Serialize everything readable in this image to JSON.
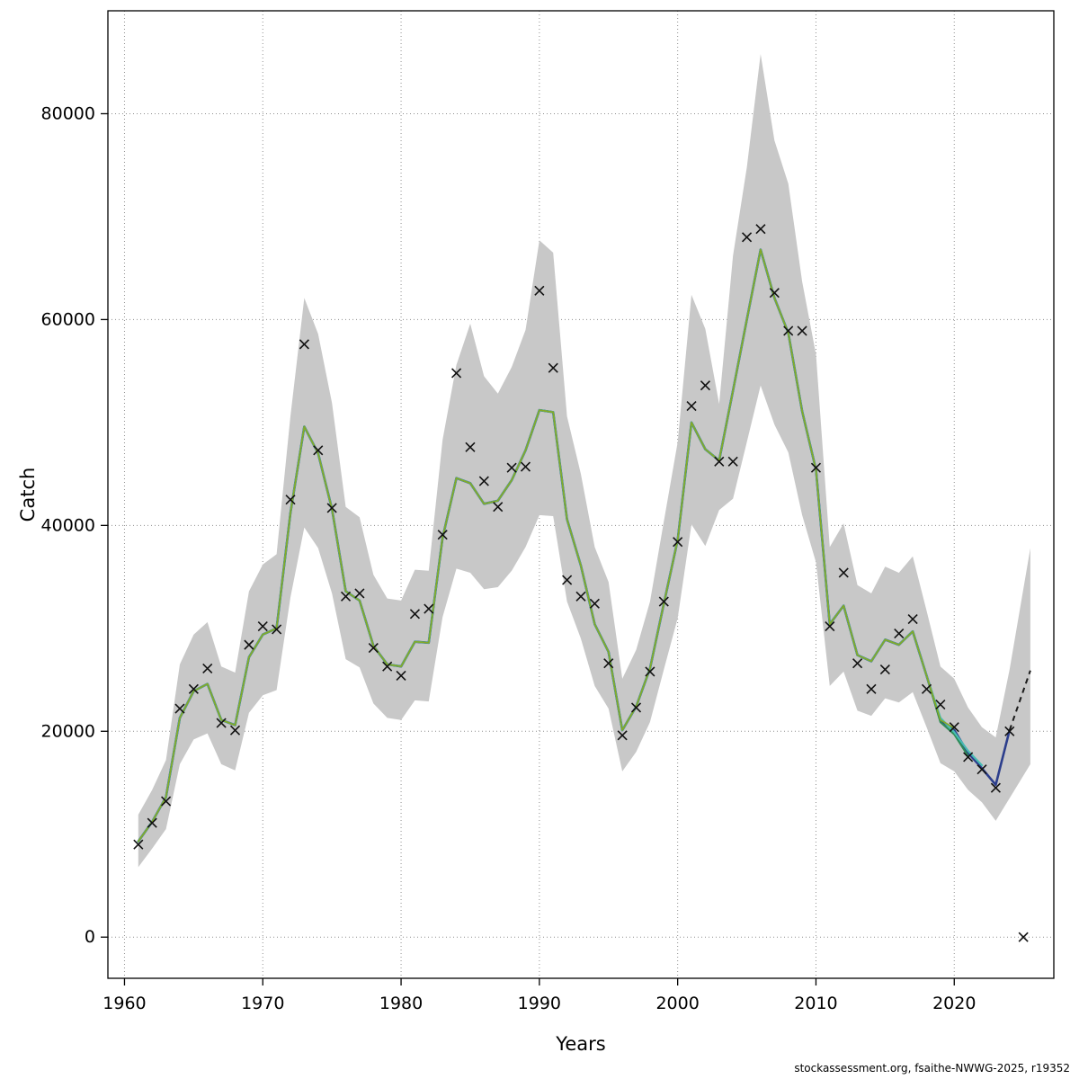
{
  "footer": "stockassessment.org, fsaithe-NWWG-2025, r19352",
  "chart_data": {
    "type": "line",
    "title": "",
    "xlabel": "Years",
    "ylabel": "Catch",
    "xlim": [
      1958.8,
      2027.2
    ],
    "ylim": [
      -4000,
      90000
    ],
    "xticks": [
      1960,
      1970,
      1980,
      1990,
      2000,
      2010,
      2020
    ],
    "yticks": [
      0,
      20000,
      40000,
      60000,
      80000
    ],
    "grid": "dotted",
    "grid_color": "#8f8f8f",
    "band": {
      "color": "#c8c8c8",
      "years": [
        1961,
        1962,
        1963,
        1964,
        1965,
        1966,
        1967,
        1968,
        1969,
        1970,
        1971,
        1972,
        1973,
        1974,
        1975,
        1976,
        1977,
        1978,
        1979,
        1980,
        1981,
        1982,
        1983,
        1984,
        1985,
        1986,
        1987,
        1988,
        1989,
        1990,
        1991,
        1992,
        1993,
        1994,
        1995,
        1996,
        1997,
        1998,
        1999,
        2000,
        2001,
        2002,
        2003,
        2004,
        2005,
        2006,
        2007,
        2008,
        2009,
        2010,
        2011,
        2012,
        2013,
        2014,
        2015,
        2016,
        2017,
        2018,
        2019,
        2020,
        2021,
        2022,
        2023,
        2024,
        2025.5
      ],
      "lower": [
        6800,
        8600,
        10500,
        16800,
        19200,
        19800,
        16800,
        16200,
        21800,
        23500,
        24000,
        33000,
        39800,
        37800,
        33400,
        27000,
        26200,
        22700,
        21300,
        21100,
        23000,
        22900,
        31100,
        35800,
        35400,
        33800,
        34000,
        35600,
        37900,
        41000,
        40900,
        32600,
        29000,
        24400,
        22200,
        16100,
        18000,
        20900,
        26000,
        31000,
        40100,
        38000,
        41500,
        42600,
        48100,
        53600,
        49800,
        47100,
        41000,
        36400,
        24400,
        25800,
        22000,
        21500,
        23200,
        22800,
        23800,
        20400,
        16900,
        16100,
        14300,
        13100,
        11300,
        13500,
        16800
      ],
      "upper": [
        11900,
        14300,
        17200,
        26500,
        29400,
        30600,
        26300,
        25700,
        33600,
        36200,
        37200,
        50600,
        62100,
        58600,
        51900,
        41800,
        40800,
        35200,
        32900,
        32700,
        35700,
        35600,
        48300,
        55600,
        59600,
        54500,
        52800,
        55400,
        59000,
        67700,
        66500,
        50600,
        45000,
        37900,
        34500,
        25100,
        27900,
        32600,
        40400,
        48100,
        62400,
        59100,
        51800,
        66200,
        74800,
        85800,
        77400,
        73200,
        63700,
        56600,
        37900,
        40200,
        34200,
        33400,
        36000,
        35400,
        37000,
        31700,
        26300,
        25100,
        22300,
        20400,
        19400,
        26000,
        37800
      ]
    },
    "fit_years": [
      1961,
      1962,
      1963,
      1964,
      1965,
      1966,
      1967,
      1968,
      1969,
      1970,
      1971,
      1972,
      1973,
      1974,
      1975,
      1976,
      1977,
      1978,
      1979,
      1980,
      1981,
      1982,
      1983,
      1984,
      1985,
      1986,
      1987,
      1988,
      1989,
      1990,
      1991,
      1992,
      1993,
      1994,
      1995,
      1996,
      1997,
      1998,
      1999,
      2000,
      2001,
      2002,
      2003,
      2004,
      2005,
      2006,
      2007,
      2008,
      2009,
      2010,
      2011,
      2012,
      2013,
      2014,
      2015,
      2016,
      2017,
      2018
    ],
    "fit_base": [
      9300,
      11200,
      13600,
      21300,
      23900,
      24600,
      21100,
      20600,
      27200,
      29400,
      30000,
      41200,
      49600,
      47000,
      41600,
      33600,
      32700,
      28300,
      26500,
      26300,
      28700,
      28600,
      38800,
      44600,
      44100,
      42100,
      42400,
      44400,
      47300,
      51200,
      51000,
      40600,
      36100,
      30400,
      27700,
      20100,
      22400,
      26100,
      32400,
      38600,
      50000,
      47400,
      46300,
      53100,
      60000,
      66800,
      62100,
      58700,
      51100,
      45400,
      30400,
      32200,
      27400,
      26800,
      28900,
      28400,
      29700,
      25400
    ],
    "series": [
      {
        "name": "navy",
        "color": "#2c3e8c",
        "width": 2.6,
        "tail_years": [
          2019,
          2020,
          2021,
          2022,
          2023,
          2024
        ],
        "tail_values": [
          21100,
          20100,
          17900,
          16400,
          14800,
          20100
        ]
      },
      {
        "name": "seagreen",
        "color": "#2e8b57",
        "width": 2.2,
        "tail_years": [
          2019,
          2020,
          2021
        ],
        "tail_values": [
          20900,
          19700,
          17600
        ]
      },
      {
        "name": "teal",
        "color": "#49bdb3",
        "width": 2.2,
        "tail_years": [
          2019,
          2020,
          2021,
          2022
        ],
        "tail_values": [
          21300,
          19900,
          18100,
          16700
        ]
      },
      {
        "name": "olive",
        "color": "#86a826",
        "width": 1.7,
        "tail_years": [
          2019,
          2020
        ],
        "tail_values": [
          21100,
          20300
        ]
      }
    ],
    "forecast": {
      "color": "#1a1a1a",
      "dash": "6 5",
      "width": 2,
      "years": [
        2024,
        2025.5
      ],
      "values": [
        20100,
        25900
      ]
    },
    "observations": {
      "marker": "x",
      "color": "#111111",
      "years": [
        1961,
        1962,
        1963,
        1964,
        1965,
        1966,
        1967,
        1968,
        1969,
        1970,
        1971,
        1972,
        1973,
        1974,
        1975,
        1976,
        1977,
        1978,
        1979,
        1980,
        1981,
        1982,
        1983,
        1984,
        1985,
        1986,
        1987,
        1988,
        1989,
        1990,
        1991,
        1992,
        1993,
        1994,
        1995,
        1996,
        1997,
        1998,
        1999,
        2000,
        2001,
        2002,
        2003,
        2004,
        2005,
        2006,
        2007,
        2008,
        2009,
        2010,
        2011,
        2012,
        2013,
        2014,
        2015,
        2016,
        2017,
        2018,
        2019,
        2020,
        2021,
        2022,
        2023,
        2024,
        2025
      ],
      "values": [
        9000,
        11100,
        13200,
        22200,
        24100,
        26100,
        20800,
        20100,
        28400,
        30200,
        29900,
        42500,
        57600,
        47300,
        41700,
        33100,
        33400,
        28100,
        26300,
        25400,
        31400,
        31900,
        39100,
        54800,
        47600,
        44300,
        41800,
        45600,
        45700,
        62800,
        55300,
        34700,
        33100,
        32400,
        26600,
        19600,
        22300,
        25800,
        32600,
        38400,
        51600,
        53600,
        46200,
        46200,
        68000,
        68800,
        62600,
        58900,
        58900,
        45600,
        30200,
        35400,
        26600,
        24100,
        26000,
        29500,
        30900,
        24100,
        22600,
        20400,
        17500,
        16300,
        14500,
        20000,
        0
      ]
    }
  }
}
